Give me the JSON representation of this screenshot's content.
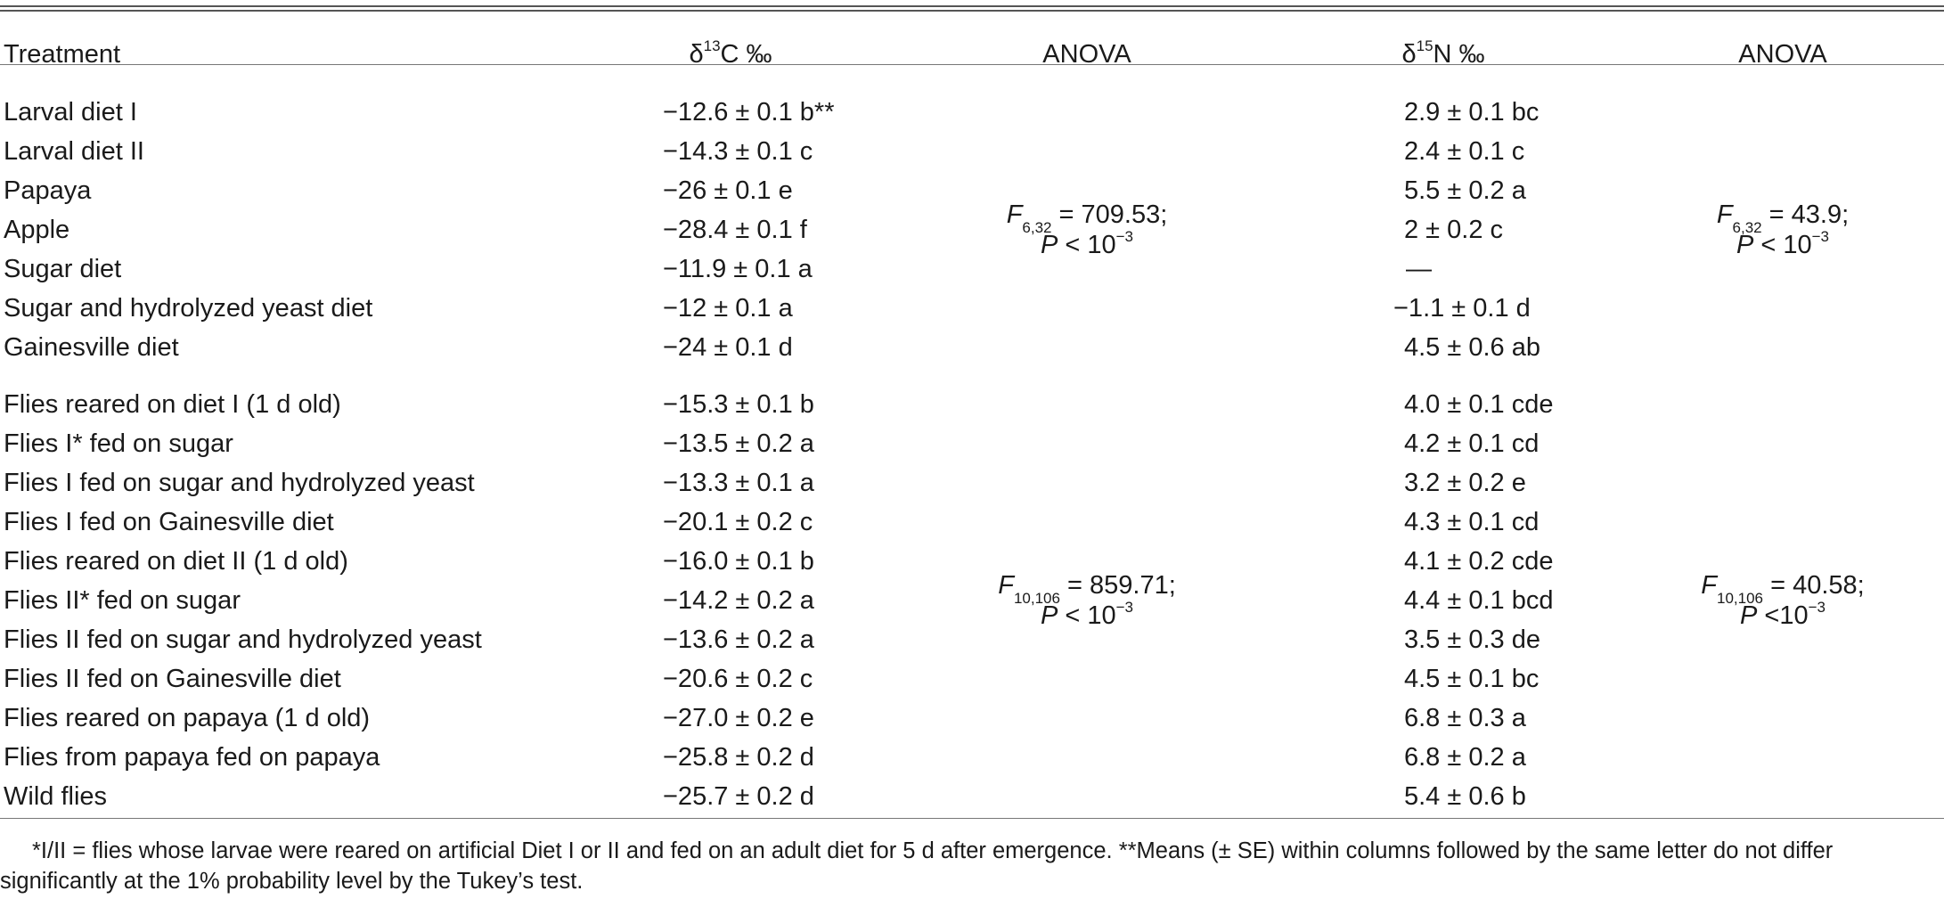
{
  "header": {
    "treatment": "Treatment",
    "d13c_delta": "δ",
    "d13c_sup": "13",
    "d13c_rest": "C ‰",
    "anova1": "ANOVA",
    "d15n_delta": "δ",
    "d15n_sup": "15",
    "d15n_rest": "N ‰",
    "anova2": "ANOVA"
  },
  "group1": {
    "rows": [
      {
        "treatment": "Larval diet I",
        "d13c": "−12.6 ± 0.1 b**",
        "d15n": "2.9 ± 0.1 bc"
      },
      {
        "treatment": "Larval diet II",
        "d13c": "−14.3 ± 0.1 c",
        "d15n": "2.4 ± 0.1 c"
      },
      {
        "treatment": "Papaya",
        "d13c": "−26 ± 0.1 e",
        "d15n": "5.5 ± 0.2 a"
      },
      {
        "treatment": "Apple",
        "d13c": "−28.4 ± 0.1 f",
        "d15n": "2 ± 0.2 c"
      },
      {
        "treatment": "Sugar diet",
        "d13c": "−11.9 ± 0.1 a",
        "d15n": "—"
      },
      {
        "treatment": "Sugar and hydrolyzed yeast diet",
        "d13c": "−12 ± 0.1 a",
        "d15n": "−1.1 ± 0.1 d"
      },
      {
        "treatment": "Gainesville diet",
        "d13c": "−24 ± 0.1 d",
        "d15n": "4.5 ± 0.6 ab"
      }
    ],
    "anova_c": {
      "F": "F",
      "df": "6,32",
      "fval": " = 709.53;",
      "P": "P",
      "p_rest": " < 10",
      "exp": "−3"
    },
    "anova_n": {
      "F": "F",
      "df": "6,32",
      "fval": " = 43.9;",
      "P": "P",
      "p_rest": " < 10",
      "exp": "−3"
    }
  },
  "group2": {
    "rows": [
      {
        "treatment": "Flies reared on diet I (1 d old)",
        "d13c": "−15.3 ± 0.1 b",
        "d15n": "4.0 ± 0.1 cde"
      },
      {
        "treatment": "Flies I* fed on sugar",
        "d13c": "−13.5 ± 0.2 a",
        "d15n": "4.2 ± 0.1 cd"
      },
      {
        "treatment": "Flies I fed on sugar and hydrolyzed yeast",
        "d13c": "−13.3 ± 0.1 a",
        "d15n": "3.2 ± 0.2 e"
      },
      {
        "treatment": "Flies I fed on Gainesville diet",
        "d13c": "−20.1 ± 0.2 c",
        "d15n": "4.3 ± 0.1 cd"
      },
      {
        "treatment": "Flies reared on diet II (1 d old)",
        "d13c": "−16.0 ± 0.1 b",
        "d15n": "4.1 ± 0.2 cde"
      },
      {
        "treatment": "Flies II* fed on sugar",
        "d13c": "−14.2 ± 0.2 a",
        "d15n": "4.4 ± 0.1 bcd"
      },
      {
        "treatment": "Flies II fed on sugar and hydrolyzed yeast",
        "d13c": "−13.6 ± 0.2 a",
        "d15n": "3.5 ± 0.3 de"
      },
      {
        "treatment": "Flies II fed on Gainesville diet",
        "d13c": "−20.6 ± 0.2 c",
        "d15n": "4.5 ± 0.1 bc"
      },
      {
        "treatment": "Flies reared on papaya (1 d old)",
        "d13c": "−27.0 ± 0.2 e",
        "d15n": "6.8 ± 0.3 a"
      },
      {
        "treatment": "Flies from papaya fed on papaya",
        "d13c": "−25.8 ± 0.2 d",
        "d15n": "6.8 ± 0.2 a"
      },
      {
        "treatment": "Wild flies",
        "d13c": "−25.7 ± 0.2 d",
        "d15n": "5.4 ± 0.6 b"
      }
    ],
    "anova_c": {
      "F": "F",
      "df": "10,106",
      "fval": " = 859.71;",
      "P": "P",
      "p_rest": " < 10",
      "exp": "−3"
    },
    "anova_n": {
      "F": "F",
      "df": "10,106",
      "fval": " = 40.58;",
      "P": "P",
      "p_rest": " <10",
      "exp": "−3"
    }
  },
  "footnote": "*I/II = flies whose larvae were reared on artificial Diet I or II and fed on an adult diet for 5 d after emergence. **Means (± SE) within columns followed by the same letter do not differ significantly at the 1% probability level by the Tukey’s test."
}
